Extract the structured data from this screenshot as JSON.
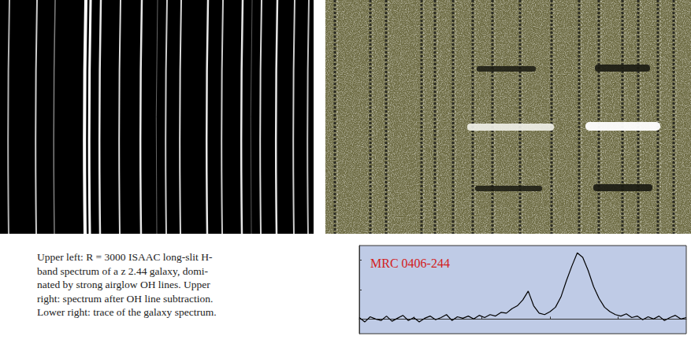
{
  "caption": [
    "Upper left: R = 3000 ISAAC long-slit H-",
    "band spectrum of a z 2.44 galaxy, domi-",
    "nated by strong airglow OH lines. Upper",
    "right: spectrum after OH line subtraction.",
    "Lower right: trace of the galaxy spectrum."
  ],
  "chart_data": {
    "type": "line",
    "annotations": [
      "MRC 0406-244"
    ],
    "color": "#000000",
    "x": [
      1.56,
      1.564,
      1.568,
      1.572,
      1.576,
      1.58,
      1.584,
      1.588,
      1.592,
      1.596,
      1.6,
      1.604,
      1.608,
      1.612,
      1.616,
      1.62,
      1.624,
      1.628,
      1.632,
      1.636,
      1.64,
      1.644,
      1.648,
      1.652,
      1.656,
      1.66,
      1.664,
      1.668,
      1.672,
      1.676,
      1.68,
      1.684,
      1.688,
      1.692,
      1.696,
      1.7,
      1.704,
      1.708,
      1.712,
      1.716,
      1.72,
      1.724,
      1.728,
      1.732,
      1.736,
      1.74,
      1.744,
      1.748,
      1.752,
      1.756,
      1.76,
      1.764,
      1.768,
      1.772,
      1.776,
      1.78,
      1.784,
      1.788,
      1.792,
      1.796,
      1.8
    ],
    "values": [
      0.1,
      -0.2,
      0.15,
      0.0,
      -0.1,
      0.2,
      -0.15,
      0.05,
      0.25,
      -0.1,
      0.1,
      -0.2,
      0.05,
      0.2,
      -0.05,
      0.1,
      0.3,
      -0.1,
      0.15,
      0.05,
      0.2,
      0.0,
      0.25,
      0.1,
      0.3,
      0.2,
      0.45,
      0.4,
      0.7,
      0.9,
      1.3,
      1.9,
      0.9,
      0.4,
      0.3,
      0.5,
      0.8,
      1.5,
      2.6,
      3.6,
      4.5,
      4.2,
      3.3,
      2.2,
      1.4,
      0.8,
      0.5,
      0.3,
      0.2,
      0.35,
      0.1,
      0.2,
      -0.05,
      0.15,
      0.0,
      0.2,
      -0.1,
      0.1,
      0.25,
      0.0,
      0.1
    ],
    "xlim": [
      1.56,
      1.8
    ],
    "xticks": [
      1.6,
      1.65,
      1.7,
      1.75
    ],
    "ylim": [
      -1,
      5
    ],
    "yticks": [
      0,
      2,
      4
    ],
    "grid": false,
    "tick_labels": false
  }
}
